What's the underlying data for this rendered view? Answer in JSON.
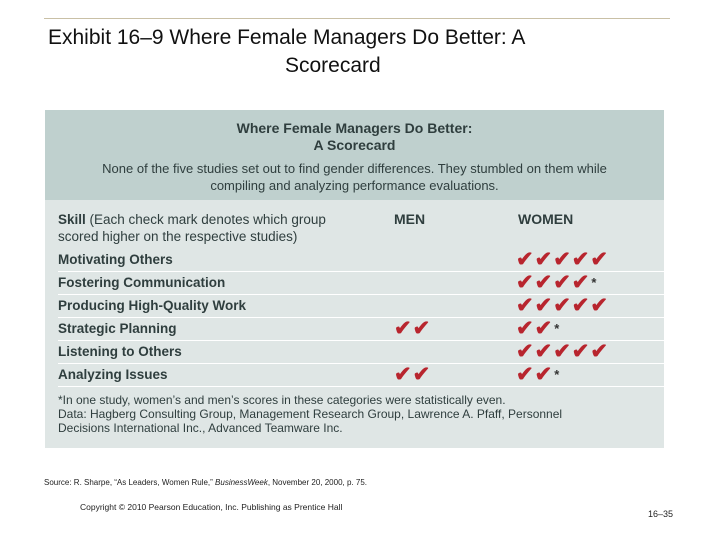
{
  "slide": {
    "title_line1": "Exhibit 16–9 Where  Female Managers Do Better: A",
    "title_line2": "Scorecard",
    "source_prefix": "Source: R. Sharpe, “As Leaders, Women Rule,” ",
    "source_pub": "BusinessWeek",
    "source_suffix": ", November 20, 2000, p. 75.",
    "copyright": "Copyright © 2010 Pearson Education, Inc. Publishing as Prentice Hall",
    "page_number": "16–35"
  },
  "scorecard": {
    "title_line1": "Where Female Managers Do Better:",
    "title_line2": "A Scorecard",
    "note_line1": "None of the five studies set out to find gender differences. They stumbled on them while",
    "note_line2": "compiling and analyzing performance evaluations.",
    "skill_header_bold": "Skill",
    "skill_header_line1": " (Each check mark denotes which group",
    "skill_header_line2": "scored higher on the respective studies)",
    "men_header": "MEN",
    "women_header": "WOMEN",
    "check_color": "#b8252e",
    "rows": [
      {
        "skill": "Motivating Others",
        "men": "",
        "women": "✔✔✔✔✔",
        "women_note": ""
      },
      {
        "skill": "Fostering Communication",
        "men": "",
        "women": "✔✔✔✔",
        "women_note": "*"
      },
      {
        "skill": "Producing High-Quality Work",
        "men": "",
        "women": "✔✔✔✔✔",
        "women_note": ""
      },
      {
        "skill": "Strategic Planning",
        "men": "✔✔",
        "women": "✔✔",
        "women_note": "*"
      },
      {
        "skill": "Listening to Others",
        "men": "",
        "women": "✔✔✔✔✔",
        "women_note": ""
      },
      {
        "skill": "Analyzing Issues",
        "men": "✔✔",
        "women": "✔✔",
        "women_note": "*"
      }
    ],
    "footnote_line1": "*In one study, women’s and men’s scores in these categories were statistically even.",
    "footnote_line2": "Data: Hagberg Consulting Group, Management Research Group, Lawrence A. Pfaff, Personnel",
    "footnote_line3": "Decisions International Inc., Advanced Teamware Inc."
  }
}
